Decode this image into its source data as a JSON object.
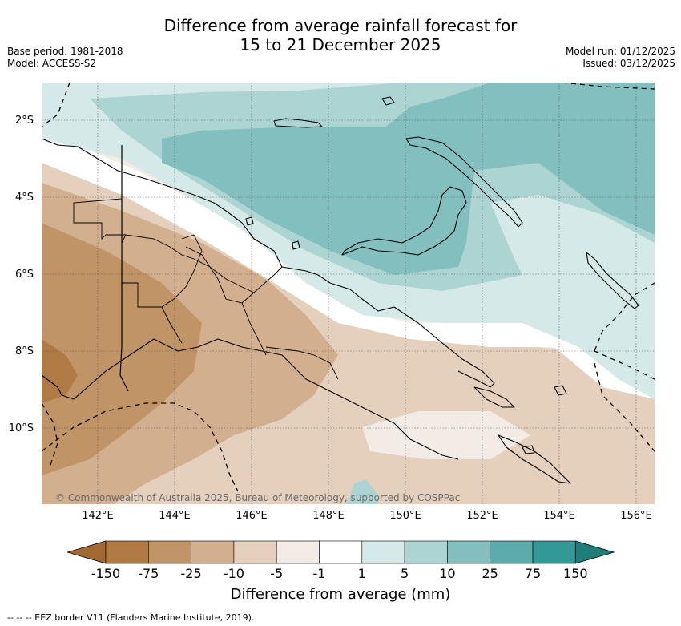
{
  "title": {
    "line1": "Difference from average rainfall forecast for",
    "line2": "15 to 21 December 2025"
  },
  "meta": {
    "base_period": "Base period: 1981-2018",
    "model": "Model: ACCESS-S2",
    "model_run": "Model run: 01/12/2025",
    "issued": "Issued: 03/12/2025"
  },
  "axes": {
    "lat_labels": [
      "2°S",
      "4°S",
      "6°S",
      "8°S",
      "10°S"
    ],
    "lon_labels": [
      "142°E",
      "144°E",
      "146°E",
      "148°E",
      "150°E",
      "152°E",
      "154°E",
      "156°E"
    ]
  },
  "copyright": "© Commonwealth of Australia 2025, Bureau of Meteorology, supported by COSPPac",
  "colorbar": {
    "ticks": [
      "-150",
      "-75",
      "-25",
      "-10",
      "-5",
      "-1",
      "1",
      "5",
      "10",
      "25",
      "75",
      "150"
    ],
    "colors": [
      "#a26a32",
      "#b07a45",
      "#c09466",
      "#d2af8e",
      "#e5d0bd",
      "#f3ece6",
      "#ffffff",
      "#d4e9e8",
      "#acd4d3",
      "#84bfbf",
      "#5bacab",
      "#319996",
      "#1f7e7a"
    ],
    "title": "Difference from average (mm)"
  },
  "legend_note": "--  --  -- EEZ border V11 (Flanders Marine Institute, 2019)."
}
